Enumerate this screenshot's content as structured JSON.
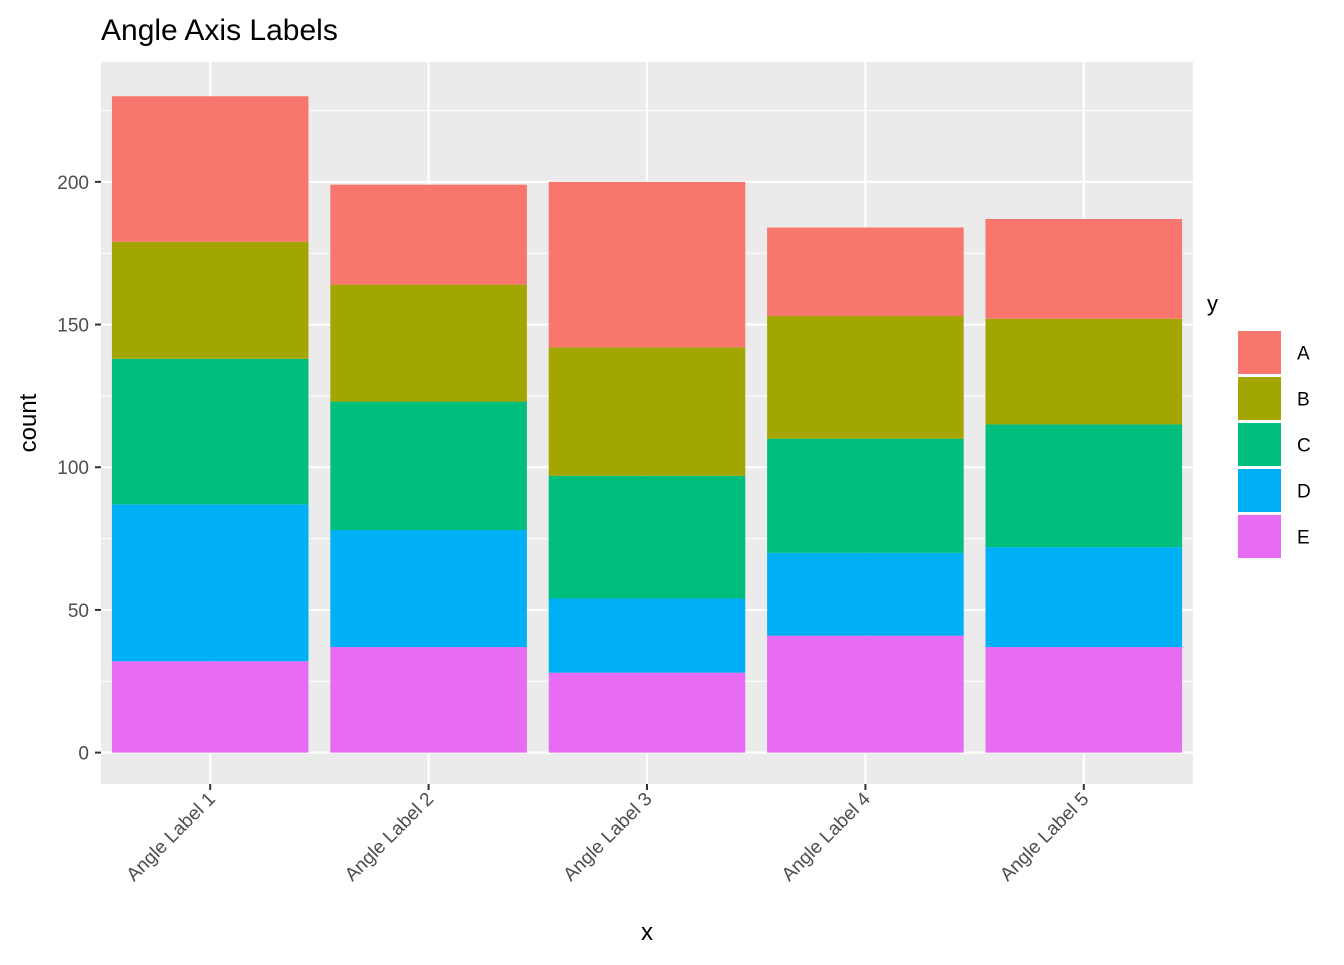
{
  "chart_data": {
    "type": "bar",
    "stacked": true,
    "title": "Angle Axis Labels",
    "xlabel": "x",
    "ylabel": "count",
    "categories": [
      "Angle Label 1",
      "Angle Label 2",
      "Angle Label 3",
      "Angle Label 4",
      "Angle Label 5"
    ],
    "y_ticks": [
      0,
      50,
      100,
      150,
      200
    ],
    "ylim": [
      -11,
      242
    ],
    "x_tick_rotation_deg": 45,
    "grid": true,
    "panel_background": "#EBEBEB",
    "grid_color": "#FFFFFF",
    "legend": {
      "title": "y",
      "position": "right",
      "entries": [
        "A",
        "B",
        "C",
        "D",
        "E"
      ]
    },
    "series": [
      {
        "name": "E",
        "color": "#E76BF3",
        "values": [
          32,
          37,
          28,
          41,
          37
        ]
      },
      {
        "name": "D",
        "color": "#00B0F6",
        "values": [
          55,
          41,
          26,
          29,
          35
        ]
      },
      {
        "name": "C",
        "color": "#00BF7D",
        "values": [
          51,
          45,
          43,
          40,
          43
        ]
      },
      {
        "name": "B",
        "color": "#A3A500",
        "values": [
          41,
          41,
          45,
          43,
          37
        ]
      },
      {
        "name": "A",
        "color": "#F8766D",
        "values": [
          51,
          35,
          58,
          31,
          35
        ]
      }
    ]
  }
}
